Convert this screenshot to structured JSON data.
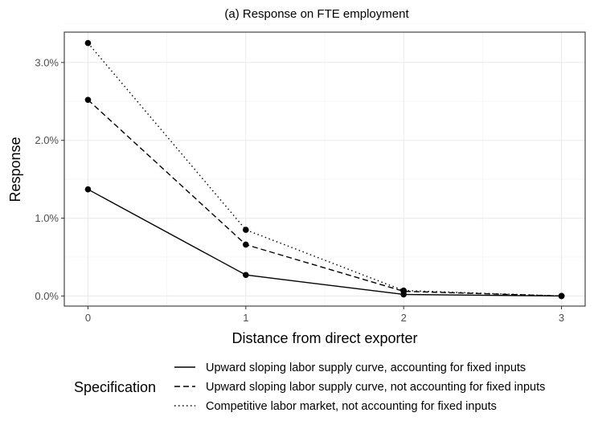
{
  "chart_data": {
    "type": "line",
    "title": "(a) Response on FTE employment",
    "xlabel": "Distance from direct exporter",
    "ylabel": "Response",
    "x": [
      0,
      1,
      2,
      3
    ],
    "xlim": [
      -0.15,
      3.15
    ],
    "ylim": [
      -0.0013,
      0.0339
    ],
    "x_ticks": [
      {
        "value": 0,
        "label": "0"
      },
      {
        "value": 1,
        "label": "1"
      },
      {
        "value": 2,
        "label": "2"
      },
      {
        "value": 3,
        "label": "3"
      }
    ],
    "y_ticks": [
      {
        "value": 0.0,
        "label": "0.0%"
      },
      {
        "value": 0.01,
        "label": "1.0%"
      },
      {
        "value": 0.02,
        "label": "2.0%"
      },
      {
        "value": 0.03,
        "label": "3.0%"
      }
    ],
    "grid": true,
    "legend": {
      "title": "Specification",
      "position": "bottom"
    },
    "series": [
      {
        "name": "Upward sloping labor supply curve, accounting for fixed inputs",
        "linestyle": "solid",
        "values": [
          0.0137,
          0.0027,
          0.0002,
          0.0
        ]
      },
      {
        "name": "Upward sloping labor supply curve, not accounting for fixed inputs",
        "linestyle": "dashed",
        "values": [
          0.0252,
          0.0066,
          0.0006,
          0.0
        ]
      },
      {
        "name": "Competitive labor market, not accounting for fixed inputs",
        "linestyle": "dotted",
        "values": [
          0.0325,
          0.0085,
          0.0007,
          0.0
        ]
      }
    ],
    "colors": {
      "line": "#000000",
      "grid_major": "#ebebeb",
      "grid_minor": "#f5f5f5",
      "panel_border": "#333333",
      "tick_text": "#4d4d4d"
    }
  }
}
